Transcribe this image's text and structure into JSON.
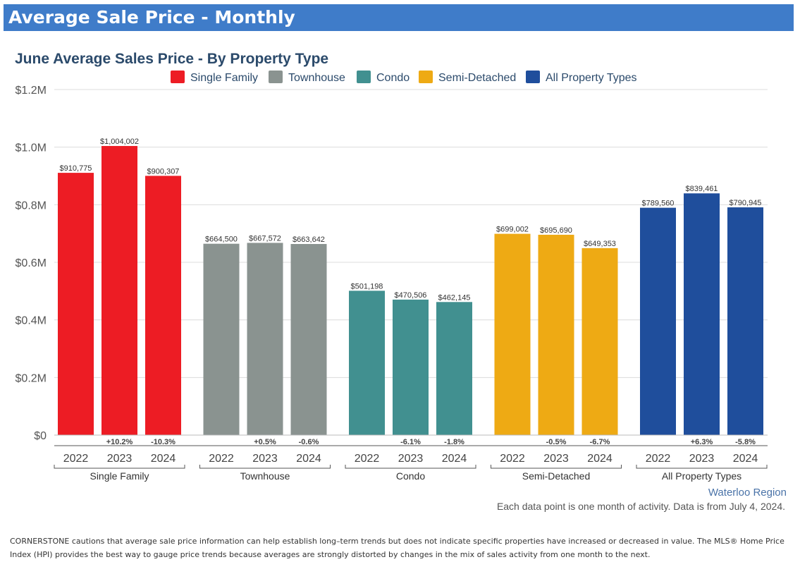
{
  "header": {
    "title": "Average Sale Price - Monthly"
  },
  "colors": {
    "banner": "#3f7cc9",
    "title": "#2b4a6b",
    "Single Family": "#ed1c24",
    "Townhouse": "#8a9390",
    "Condo": "#419090",
    "Semi-Detached": "#eeaa14",
    "All Property Types": "#1f4e9c"
  },
  "chart_data": {
    "type": "bar",
    "title": "June Average Sales Price - By Property Type",
    "ylim": [
      0,
      1200000
    ],
    "yticks": [
      {
        "value": 0,
        "label": "$0"
      },
      {
        "value": 200000,
        "label": "$0.2M"
      },
      {
        "value": 400000,
        "label": "$0.4M"
      },
      {
        "value": 600000,
        "label": "$0.6M"
      },
      {
        "value": 800000,
        "label": "$0.8M"
      },
      {
        "value": 1000000,
        "label": "$1.0M"
      },
      {
        "value": 1200000,
        "label": "$1.2M"
      }
    ],
    "legend": [
      "Single Family",
      "Townhouse",
      "Condo",
      "Semi-Detached",
      "All Property Types"
    ],
    "legend_position": "top-center",
    "grid": true,
    "groups": [
      {
        "name": "Single Family",
        "years": [
          "2022",
          "2023",
          "2024"
        ],
        "values": [
          910775,
          1004002,
          900307
        ],
        "value_labels": [
          "$910,775",
          "$1,004,002",
          "$900,307"
        ],
        "changes": [
          "",
          "+10.2%",
          "-10.3%"
        ]
      },
      {
        "name": "Townhouse",
        "years": [
          "2022",
          "2023",
          "2024"
        ],
        "values": [
          664500,
          667572,
          663642
        ],
        "value_labels": [
          "$664,500",
          "$667,572",
          "$663,642"
        ],
        "changes": [
          "",
          "+0.5%",
          "-0.6%"
        ]
      },
      {
        "name": "Condo",
        "years": [
          "2022",
          "2023",
          "2024"
        ],
        "values": [
          501198,
          470506,
          462145
        ],
        "value_labels": [
          "$501,198",
          "$470,506",
          "$462,145"
        ],
        "changes": [
          "",
          "-6.1%",
          "-1.8%"
        ]
      },
      {
        "name": "Semi-Detached",
        "years": [
          "2022",
          "2023",
          "2024"
        ],
        "values": [
          699002,
          695690,
          649353
        ],
        "value_labels": [
          "$699,002",
          "$695,690",
          "$649,353"
        ],
        "changes": [
          "",
          "-0.5%",
          "-6.7%"
        ]
      },
      {
        "name": "All Property Types",
        "years": [
          "2022",
          "2023",
          "2024"
        ],
        "values": [
          789560,
          839461,
          790945
        ],
        "value_labels": [
          "$789,560",
          "$839,461",
          "$790,945"
        ],
        "changes": [
          "",
          "+6.3%",
          "-5.8%"
        ]
      }
    ],
    "region": "Waterloo Region",
    "note": "Each data point is one month of activity. Data is from July 4, 2024."
  },
  "footer": {
    "disclaimer": "CORNERSTONE cautions that average sale price information can help establish long–term trends but does not indicate specific properties have increased or decreased in value. The MLS® Home Price Index (HPI) provides the best way to gauge price trends because averages are strongly distorted by changes in the mix of sales activity from one month to the next."
  }
}
